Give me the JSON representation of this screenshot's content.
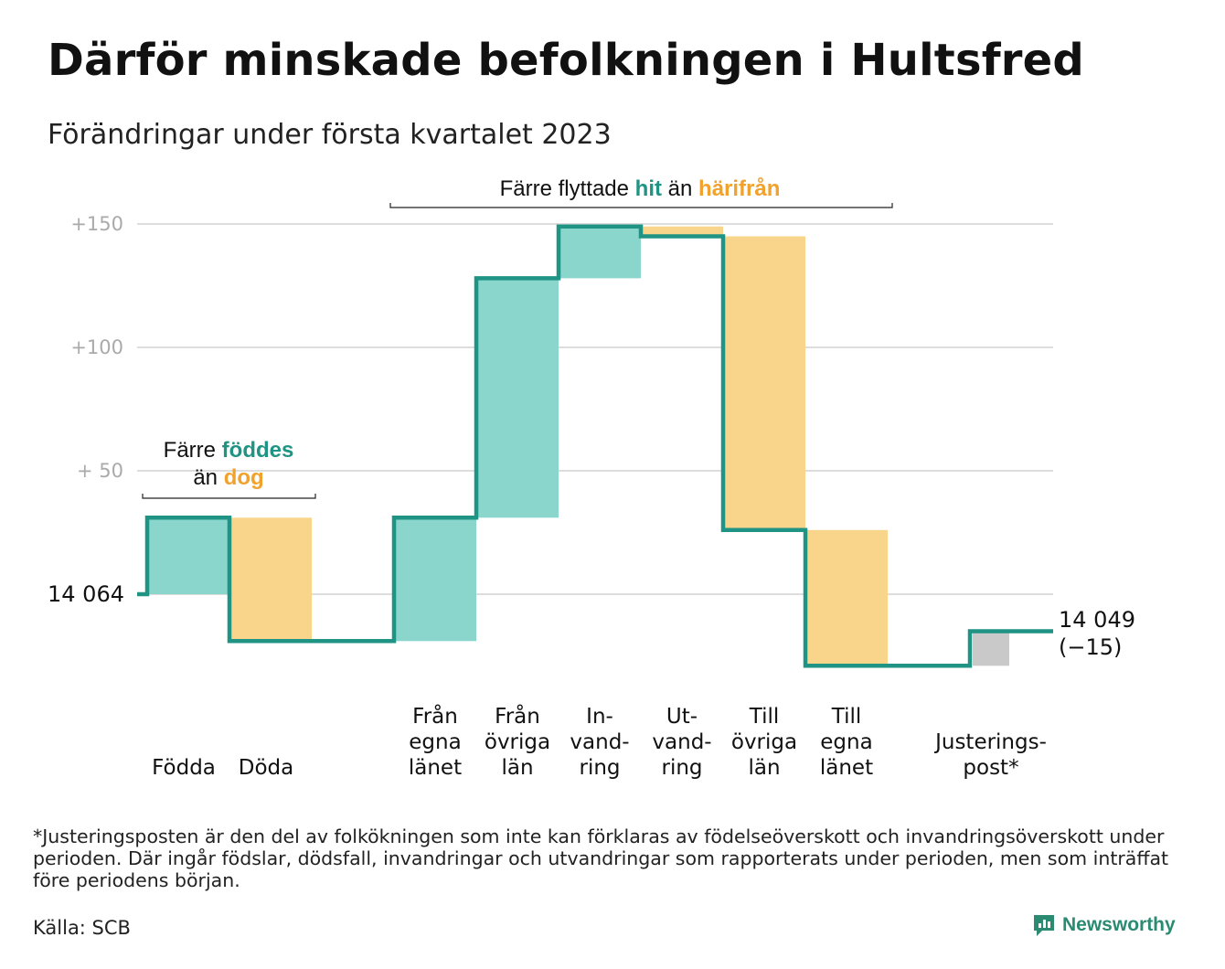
{
  "title": "Därför minskade befolkningen i Hultsfred",
  "subtitle": "Förändringar under första kvartalet 2023",
  "footnote": "*Justeringsposten är den del av folkökningen som inte kan förklaras av födelseöverskott och invandringsöverskott under perioden. Där ingår födslar, dödsfall, invandringar och utvandringar som rapporterats under perioden, men som inträffat före periodens början.",
  "source": "Källa: SCB",
  "brand": "Newsworthy",
  "colors": {
    "inflow": "#8ad5cc",
    "outflow": "#f9d48b",
    "adjustment": "#c9c9c9",
    "line": "#1f9384",
    "accent_teal": "#1f9384",
    "accent_orange": "#f1a22c",
    "grid": "#dddddd",
    "tick": "#aaaaaa"
  },
  "chart_data": {
    "type": "waterfall",
    "start_label": "14 064",
    "end_label": "14 049",
    "end_change": "(−15)",
    "y_ticks": [
      "+150",
      "+100",
      "+ 50"
    ],
    "y_tick_values": [
      150,
      100,
      50
    ],
    "ylim": [
      -30,
      150
    ],
    "baseline": 0,
    "steps": [
      {
        "label": [
          "Födda"
        ],
        "from": 0,
        "to": 31,
        "kind": "inflow"
      },
      {
        "label": [
          "Döda"
        ],
        "from": 31,
        "to": -19,
        "kind": "outflow"
      },
      {
        "label": [
          "Från",
          "egna",
          "länet"
        ],
        "from": -19,
        "to": 31,
        "kind": "inflow"
      },
      {
        "label": [
          "Från",
          "övriga",
          "län"
        ],
        "from": 31,
        "to": 128,
        "kind": "inflow"
      },
      {
        "label": [
          "In-",
          "vand-",
          "ring"
        ],
        "from": 128,
        "to": 149,
        "kind": "inflow"
      },
      {
        "label": [
          "Ut-",
          "vand-",
          "ring"
        ],
        "from": 149,
        "to": 145,
        "kind": "outflow"
      },
      {
        "label": [
          "Till",
          "övriga",
          "län"
        ],
        "from": 145,
        "to": 26,
        "kind": "outflow"
      },
      {
        "label": [
          "Till",
          "egna",
          "länet"
        ],
        "from": 26,
        "to": -29,
        "kind": "outflow"
      },
      {
        "label": [
          "Justerings-",
          "post*"
        ],
        "from": -29,
        "to": -15,
        "kind": "adjustment"
      }
    ],
    "annotations": [
      {
        "parts": [
          {
            "text": "Färre ",
            "style": "plain"
          },
          {
            "text": "föddes",
            "style": "teal"
          }
        ],
        "line2": [
          {
            "text": "än ",
            "style": "plain"
          },
          {
            "text": "dog",
            "style": "orange"
          }
        ]
      },
      {
        "parts": [
          {
            "text": "Färre flyttade ",
            "style": "plain"
          },
          {
            "text": "hit",
            "style": "teal"
          },
          {
            "text": " än ",
            "style": "plain"
          },
          {
            "text": "härifrån",
            "style": "orange"
          }
        ]
      }
    ]
  }
}
